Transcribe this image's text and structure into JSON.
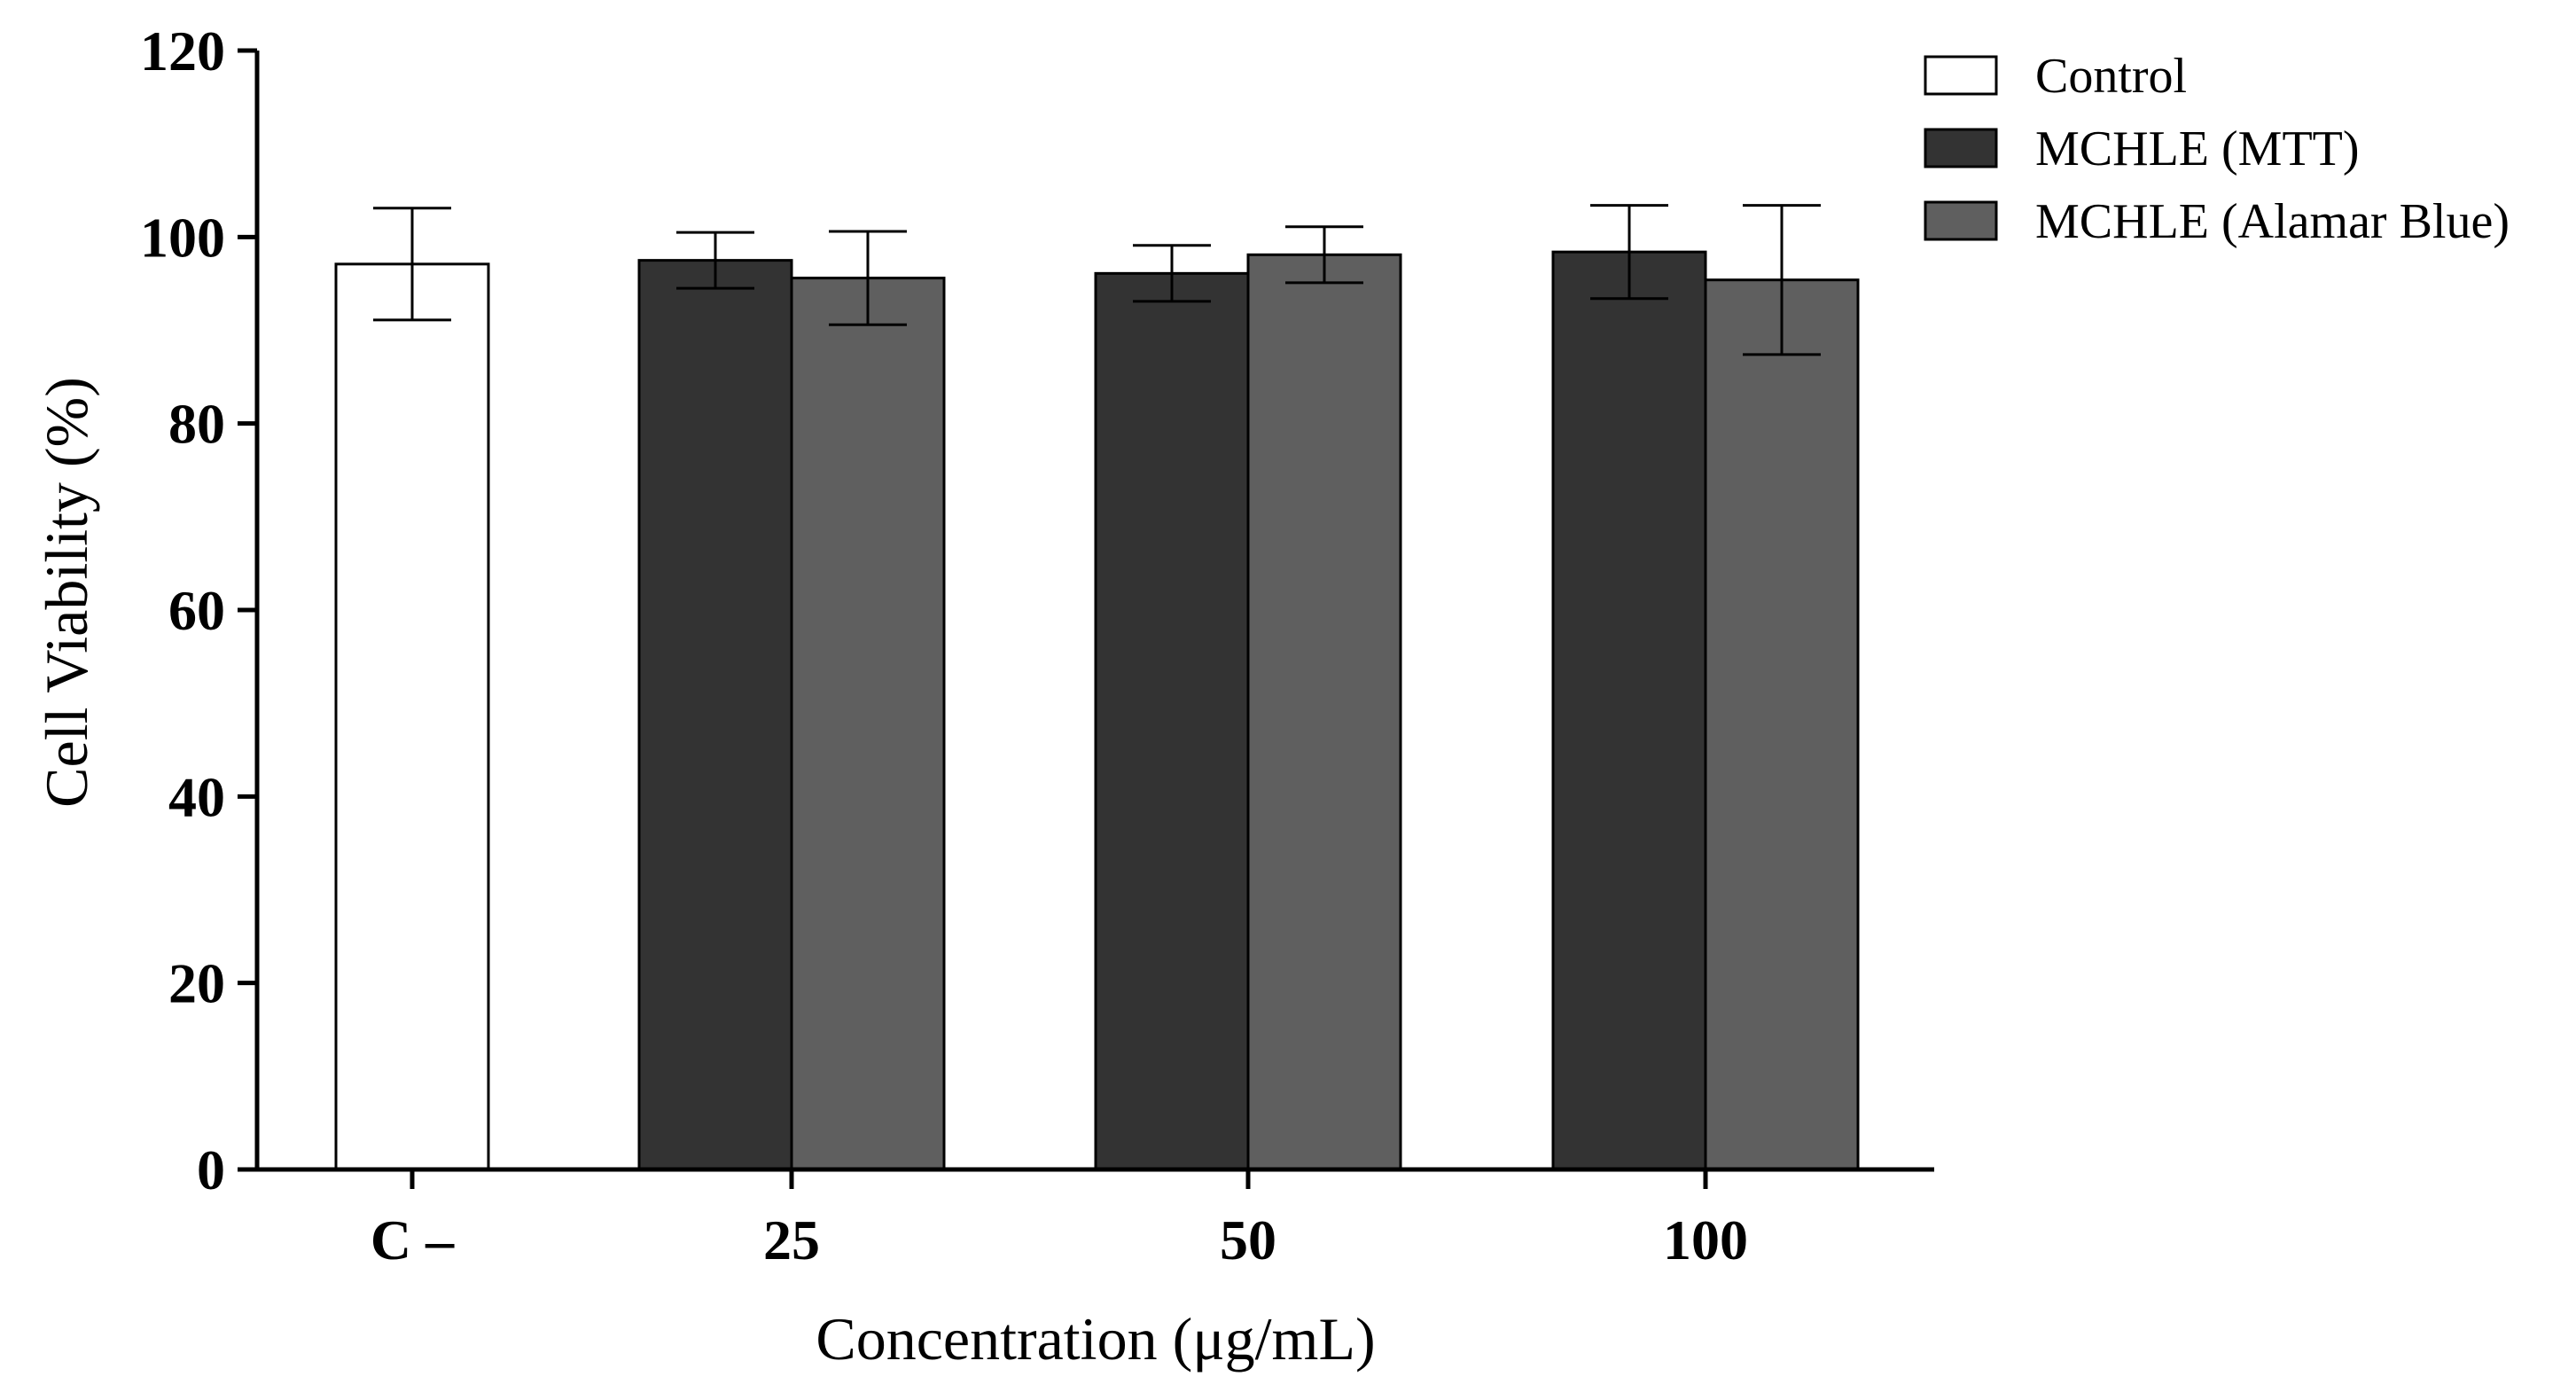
{
  "chart_data": {
    "type": "bar",
    "title": "",
    "xlabel": "Concentration (μg/mL)",
    "ylabel": "Cell Viability (%)",
    "ylim": [
      0,
      120
    ],
    "yticks": [
      0,
      20,
      40,
      60,
      80,
      100,
      120
    ],
    "categories": [
      "C –",
      "25",
      "50",
      "100"
    ],
    "legend_position": "top-right",
    "series": [
      {
        "name": "Control",
        "color": "#ffffff",
        "values": [
          97.1,
          null,
          null,
          null
        ],
        "errors": [
          6.0,
          null,
          null,
          null
        ]
      },
      {
        "name": "MCHLE (MTT)",
        "color": "#333333",
        "values": [
          null,
          97.5,
          96.1,
          98.4
        ],
        "errors": [
          null,
          3.0,
          3.0,
          5.0
        ]
      },
      {
        "name": "MCHLE (Alamar Blue)",
        "color": "#5f5f5f",
        "values": [
          null,
          95.6,
          98.1,
          95.4
        ],
        "errors": [
          null,
          5.0,
          3.0,
          8.0
        ]
      }
    ]
  }
}
